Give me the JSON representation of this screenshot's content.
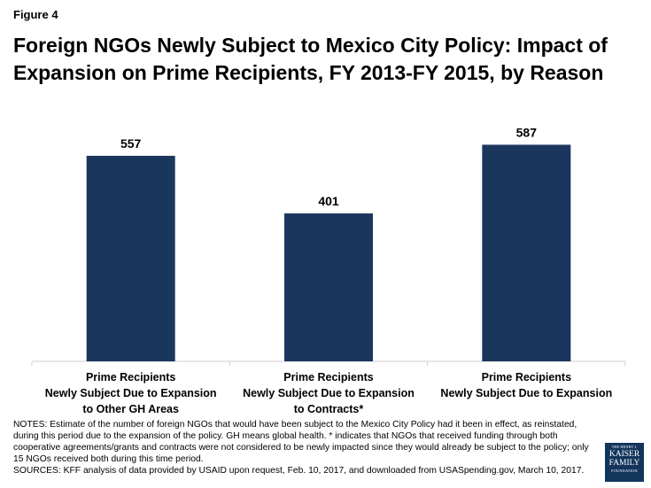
{
  "figure_label": "Figure 4",
  "title": "Foreign NGOs Newly Subject to Mexico City Policy: Impact of Expansion on Prime Recipients, FY 2013-FY 2015, by Reason",
  "chart_data": {
    "type": "bar",
    "categories": [
      [
        "Prime Recipients",
        "Newly Subject Due to Expansion",
        "to Other GH Areas"
      ],
      [
        "Prime Recipients",
        "Newly Subject Due to Expansion",
        "to Contracts*"
      ],
      [
        "Prime Recipients",
        "Newly Subject Due to Expansion"
      ]
    ],
    "values": [
      557,
      401,
      587
    ],
    "data_labels": [
      "557",
      "401",
      "587"
    ],
    "bar_color": "#1b365d",
    "axis_color": "#cfcfcf",
    "ylim": [
      0,
      600
    ],
    "grid": false,
    "legend": "none"
  },
  "notes": "NOTES: Estimate of the number of foreign NGOs that would have been subject to the Mexico City Policy had it been in effect, as reinstated, during this period due to the expansion of the policy. GH means global health. * indicates that NGOs that received funding through both cooperative agreements/grants and contracts were not considered to be newly impacted since they would already be subject to the policy; only 15 NGOs received both during this time period.",
  "sources": "SOURCES: KFF analysis of data provided by USAID upon request, Feb. 10, 2017,  and downloaded from USASpending.gov, March 10, 2017.",
  "logo": {
    "line1": "THE HENRY J.",
    "line2": "KAISER",
    "line3": "FAMILY",
    "line4": "FOUNDATION"
  }
}
